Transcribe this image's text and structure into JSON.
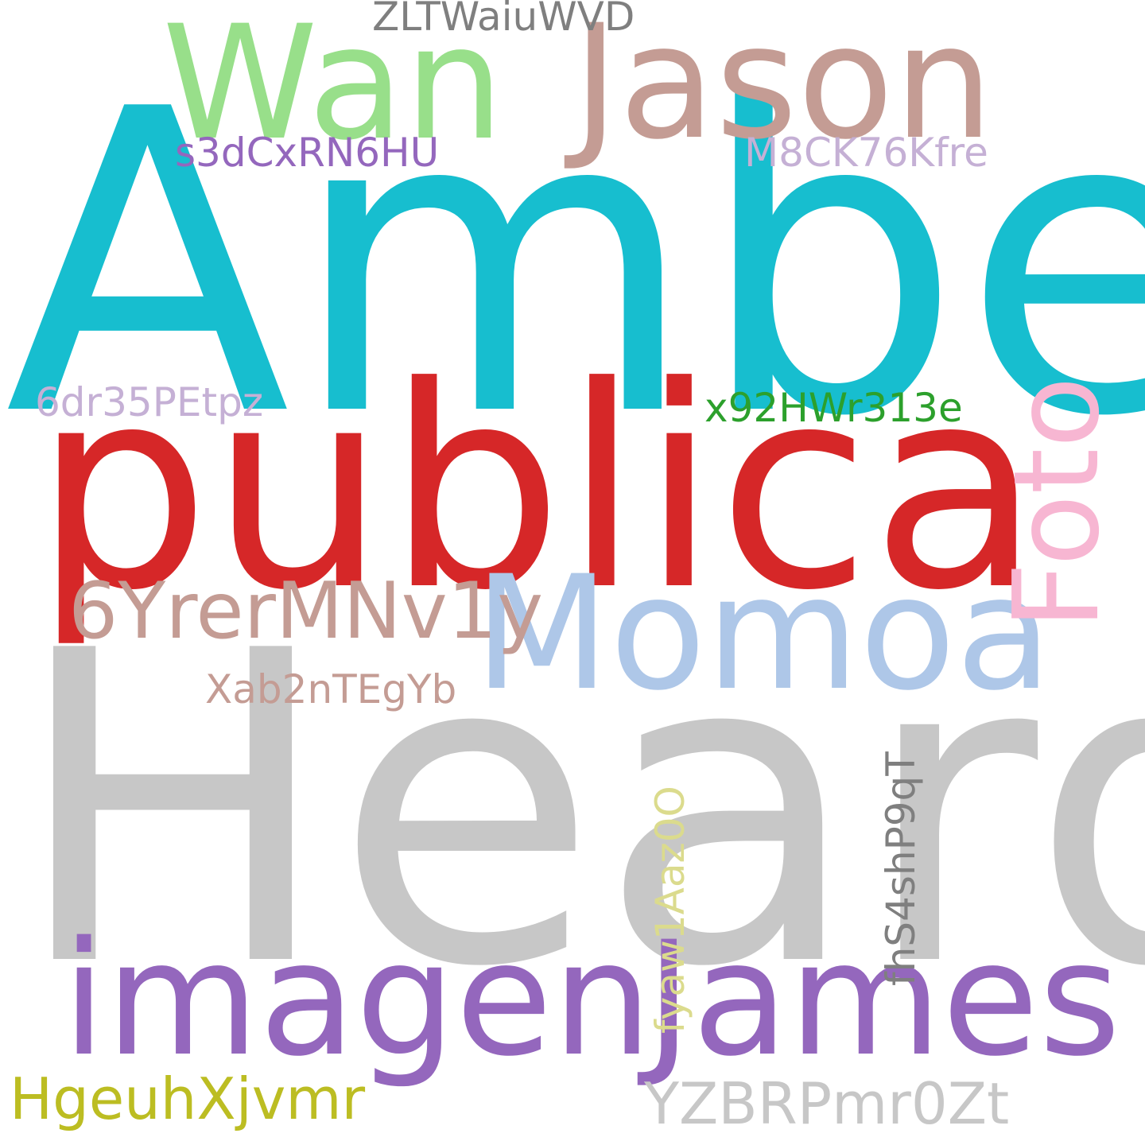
{
  "words": {
    "amber": {
      "text": "Amber",
      "color": "#17becf"
    },
    "heard": {
      "text": "Heard",
      "color": "#c7c7c7"
    },
    "publica": {
      "text": "publica",
      "color": "#d62728"
    },
    "momoa": {
      "text": "Momoa",
      "color": "#aec7e8"
    },
    "jason": {
      "text": "Jason",
      "color": "#c49c94"
    },
    "wan": {
      "text": "Wan",
      "color": "#98df8a"
    },
    "imagen": {
      "text": "imagen",
      "color": "#9467bd"
    },
    "james": {
      "text": "James",
      "color": "#9467bd"
    },
    "foto": {
      "text": "Foto",
      "color": "#f7b6d2"
    },
    "zltw": {
      "text": "ZLTWaiuWVD",
      "color": "#7f7f7f"
    },
    "s3dc": {
      "text": "s3dCxRN6HU",
      "color": "#9467bd"
    },
    "m8ck": {
      "text": "M8CK76Kfre",
      "color": "#c5b0d5"
    },
    "6dr3": {
      "text": "6dr35PEtpz",
      "color": "#c5b0d5"
    },
    "x92h": {
      "text": "x92HWr313e",
      "color": "#2ca02c"
    },
    "6yre": {
      "text": "6YrerMNv1y",
      "color": "#c49c94"
    },
    "xab2": {
      "text": "Xab2nTEgYb",
      "color": "#c49c94"
    },
    "fhs4": {
      "text": "fhS4shP9qT",
      "color": "#7f7f7f"
    },
    "fyaw": {
      "text": "fyaw1Aaz0O",
      "color": "#dbdb8d"
    },
    "hgeu": {
      "text": "HgeuhXjvmr",
      "color": "#bcbd22"
    },
    "yzbr": {
      "text": "YZBRPmr0Zt",
      "color": "#c7c7c7"
    }
  }
}
